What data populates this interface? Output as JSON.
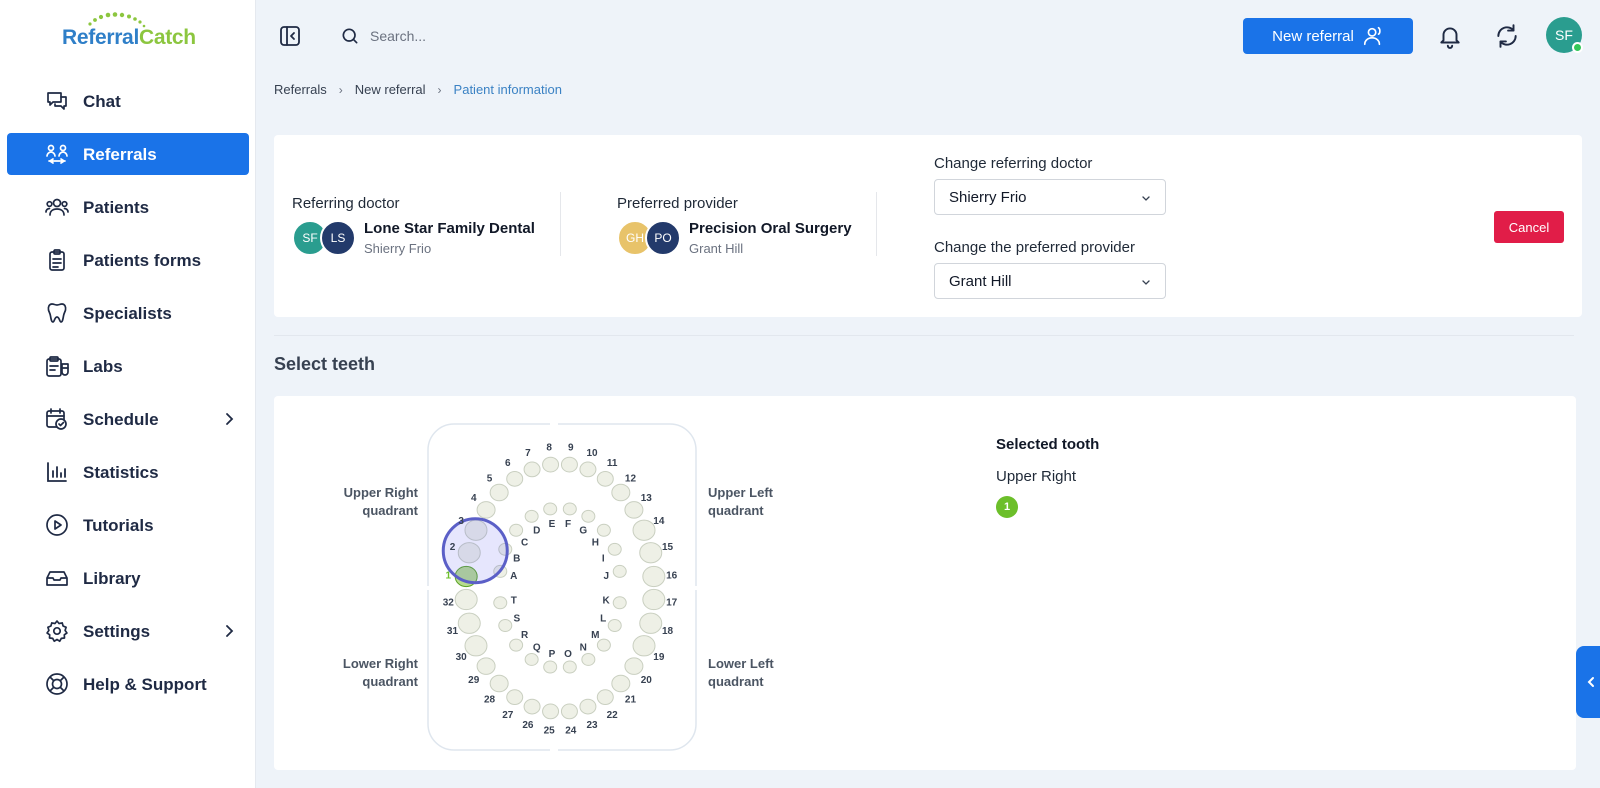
{
  "app": {
    "logo_text_a": "Referral",
    "logo_text_b": "Catch",
    "brand_blue": "#1a73e8",
    "brand_green": "#8cc63f"
  },
  "sidebar": {
    "items": [
      {
        "label": "Chat",
        "icon": "chat-icon"
      },
      {
        "label": "Referrals",
        "icon": "referrals-icon",
        "active": true
      },
      {
        "label": "Patients",
        "icon": "patients-icon"
      },
      {
        "label": "Patients forms",
        "icon": "clipboard-icon"
      },
      {
        "label": "Specialists",
        "icon": "tooth-icon"
      },
      {
        "label": "Labs",
        "icon": "labs-icon"
      },
      {
        "label": "Schedule",
        "icon": "calendar-icon",
        "expandable": true
      },
      {
        "label": "Statistics",
        "icon": "bar-chart-icon"
      },
      {
        "label": "Tutorials",
        "icon": "play-icon"
      },
      {
        "label": "Library",
        "icon": "library-icon"
      },
      {
        "label": "Settings",
        "icon": "gear-icon",
        "expandable": true
      },
      {
        "label": "Help & Support",
        "icon": "lifebuoy-icon"
      }
    ]
  },
  "topbar": {
    "search_placeholder": "Search...",
    "new_referral_label": "New referral",
    "user_initials": "SF"
  },
  "breadcrumb": {
    "items": [
      "Referrals",
      "New referral",
      "Patient information"
    ]
  },
  "referral": {
    "referring_title": "Referring doctor",
    "referring_avatars": [
      "SF",
      "LS"
    ],
    "referring_practice": "Lone Star Family Dental",
    "referring_doctor": "Shierry Frio",
    "provider_title": "Preferred provider",
    "provider_avatars": [
      "GH",
      "PO"
    ],
    "provider_practice": "Precision Oral Surgery",
    "provider_doctor": "Grant Hill",
    "change_doctor_label": "Change referring doctor",
    "change_doctor_value": "Shierry Frio",
    "change_provider_label": "Change the preferred provider",
    "change_provider_value": "Grant Hill",
    "cancel_label": "Cancel"
  },
  "teeth": {
    "section_title": "Select teeth",
    "quadrants": {
      "upper_right": [
        "Upper Right",
        "quadrant"
      ],
      "upper_left": [
        "Upper Left",
        "quadrant"
      ],
      "lower_right": [
        "Lower Right",
        "quadrant"
      ],
      "lower_left": [
        "Lower Left",
        "quadrant"
      ]
    },
    "selected_title": "Selected tooth",
    "selected_quadrant": "Upper Right",
    "selected_teeth": [
      "1"
    ],
    "highlight_color": "#6cbf2a",
    "permanent_upper": [
      "1",
      "2",
      "3",
      "4",
      "5",
      "6",
      "7",
      "8",
      "9",
      "10",
      "11",
      "12",
      "13",
      "14",
      "15",
      "16"
    ],
    "primary_upper": [
      "A",
      "B",
      "C",
      "D",
      "E",
      "F",
      "G",
      "H",
      "I",
      "J"
    ],
    "permanent_lower": [
      "17",
      "18",
      "19",
      "20",
      "21",
      "22",
      "23",
      "24",
      "25",
      "26",
      "27",
      "28",
      "29",
      "30",
      "31",
      "32"
    ],
    "primary_lower": [
      "K",
      "L",
      "M",
      "N",
      "O",
      "P",
      "Q",
      "R",
      "S",
      "T"
    ]
  }
}
